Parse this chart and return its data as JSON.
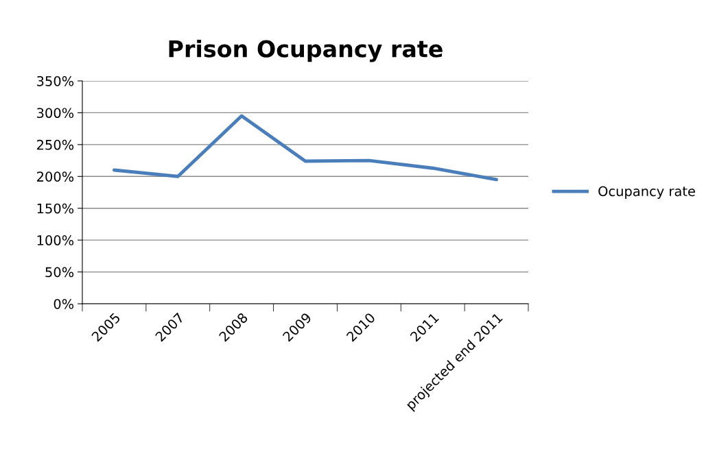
{
  "chart_data": {
    "type": "line",
    "title": "Prison Ocupancy rate",
    "categories": [
      "2005",
      "2007",
      "2008",
      "2009",
      "2010",
      "2011",
      "projected end 2011"
    ],
    "series": [
      {
        "name": "Ocupancy rate",
        "color": "#4a7ebb",
        "values": [
          210,
          200,
          295,
          224,
          225,
          213,
          195
        ]
      }
    ],
    "ylim": [
      0,
      350
    ],
    "yticks": [
      {
        "value": 0,
        "label": "0%"
      },
      {
        "value": 50,
        "label": "50%"
      },
      {
        "value": 100,
        "label": "100%"
      },
      {
        "value": 150,
        "label": "150%"
      },
      {
        "value": 200,
        "label": "200%"
      },
      {
        "value": 250,
        "label": "250%"
      },
      {
        "value": 300,
        "label": "300%"
      },
      {
        "value": 350,
        "label": "350%"
      }
    ],
    "grid": "y",
    "legend": "right",
    "marker": "none",
    "line_style": "solid"
  }
}
